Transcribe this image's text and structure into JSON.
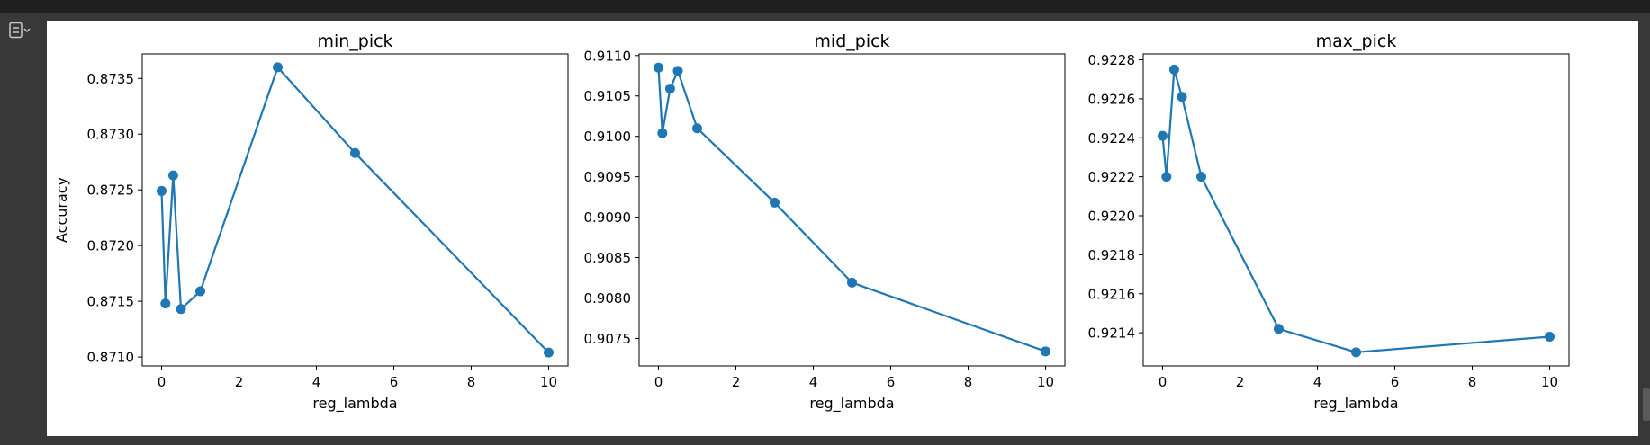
{
  "notebook": {
    "output_toggle_icon": "output-collapse-icon"
  },
  "colors": {
    "series": "#1f77b4",
    "background": "#ffffff",
    "axis": "#000000"
  },
  "chart_data": [
    {
      "type": "line",
      "title": "min_pick",
      "xlabel": "reg_lambda",
      "ylabel": "Accuracy",
      "x": [
        0,
        0.1,
        0.3,
        0.5,
        1,
        3,
        5,
        10
      ],
      "y": [
        0.87249,
        0.87148,
        0.87263,
        0.87143,
        0.87159,
        0.8736,
        0.87283,
        0.87104
      ],
      "xticks": [
        0,
        2,
        4,
        6,
        8,
        10
      ],
      "xtick_labels": [
        "0",
        "2",
        "4",
        "6",
        "8",
        "10"
      ],
      "yticks": [
        0.871,
        0.8715,
        0.872,
        0.8725,
        0.873,
        0.8735
      ],
      "ytick_labels": [
        "0.8710",
        "0.8715",
        "0.8720",
        "0.8725",
        "0.8730",
        "0.8735"
      ],
      "xlim": [
        -0.5,
        10.5
      ],
      "ylim": [
        0.87092,
        0.87372
      ],
      "marker": "circle",
      "grid": false
    },
    {
      "type": "line",
      "title": "mid_pick",
      "xlabel": "reg_lambda",
      "ylabel": "",
      "x": [
        0,
        0.1,
        0.3,
        0.5,
        1,
        3,
        5,
        10
      ],
      "y": [
        0.91085,
        0.91004,
        0.91059,
        0.91081,
        0.9101,
        0.90918,
        0.90819,
        0.90734
      ],
      "xticks": [
        0,
        2,
        4,
        6,
        8,
        10
      ],
      "xtick_labels": [
        "0",
        "2",
        "4",
        "6",
        "8",
        "10"
      ],
      "yticks": [
        0.9075,
        0.908,
        0.9085,
        0.909,
        0.9095,
        0.91,
        0.9105,
        0.911
      ],
      "ytick_labels": [
        "0.9075",
        "0.9080",
        "0.9085",
        "0.9090",
        "0.9095",
        "0.9100",
        "0.9105",
        "0.9110"
      ],
      "xlim": [
        -0.5,
        10.5
      ],
      "ylim": [
        0.90716,
        0.91102
      ],
      "marker": "circle",
      "grid": false
    },
    {
      "type": "line",
      "title": "max_pick",
      "xlabel": "reg_lambda",
      "ylabel": "",
      "x": [
        0,
        0.1,
        0.3,
        0.5,
        1,
        3,
        5,
        10
      ],
      "y": [
        0.92241,
        0.9222,
        0.92275,
        0.92261,
        0.9222,
        0.92142,
        0.9213,
        0.92138
      ],
      "xticks": [
        0,
        2,
        4,
        6,
        8,
        10
      ],
      "xtick_labels": [
        "0",
        "2",
        "4",
        "6",
        "8",
        "10"
      ],
      "yticks": [
        0.9214,
        0.9216,
        0.9218,
        0.922,
        0.9222,
        0.9224,
        0.9226,
        0.9228
      ],
      "ytick_labels": [
        "0.9214",
        "0.9216",
        "0.9218",
        "0.9220",
        "0.9222",
        "0.9224",
        "0.9226",
        "0.9228"
      ],
      "xlim": [
        -0.5,
        10.5
      ],
      "ylim": [
        0.92123,
        0.92283
      ],
      "marker": "circle",
      "grid": false
    }
  ]
}
